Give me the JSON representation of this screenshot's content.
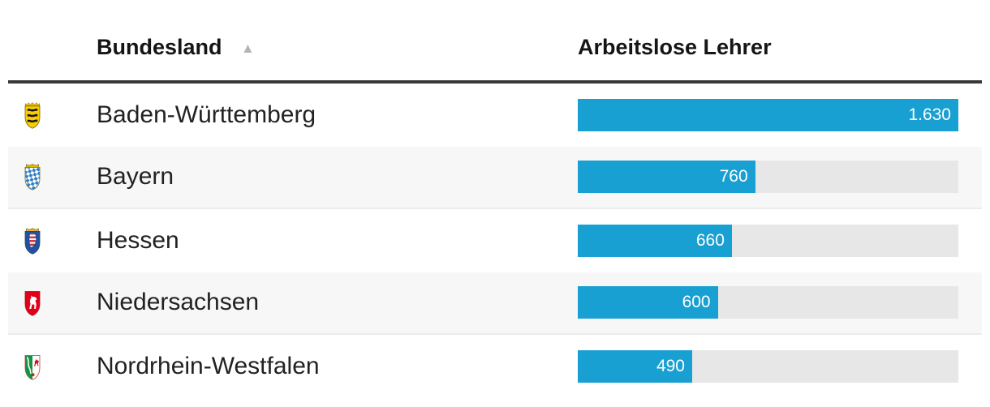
{
  "header": {
    "bundesland_label": "Bundesland",
    "sort_icon": "▲",
    "value_column_label": "Arbeitslose Lehrer"
  },
  "chart_data": {
    "type": "bar",
    "orientation": "horizontal",
    "title": "Arbeitslose Lehrer",
    "categories": [
      "Baden-Württemberg",
      "Bayern",
      "Hessen",
      "Niedersachsen",
      "Nordrhein-Westfalen"
    ],
    "values": [
      1630,
      760,
      660,
      600,
      490
    ],
    "value_labels": [
      "1.630",
      "760",
      "660",
      "600",
      "490"
    ],
    "xlim": [
      0,
      1630
    ],
    "max": 1630,
    "legend": "none",
    "grid": "off"
  },
  "rows": [
    {
      "label": "Baden-Württemberg",
      "value": 1630,
      "value_label": "1.630",
      "crest": "baden-wuerttemberg-coat-of-arms"
    },
    {
      "label": "Bayern",
      "value": 760,
      "value_label": "760",
      "crest": "bayern-coat-of-arms"
    },
    {
      "label": "Hessen",
      "value": 660,
      "value_label": "660",
      "crest": "hessen-coat-of-arms"
    },
    {
      "label": "Niedersachsen",
      "value": 600,
      "value_label": "600",
      "crest": "niedersachsen-coat-of-arms"
    },
    {
      "label": "Nordrhein-Westfalen",
      "value": 490,
      "value_label": "490",
      "crest": "nordrhein-westfalen-coat-of-arms"
    }
  ],
  "colors": {
    "bar": "#19A0D2",
    "track": "#E7E7E7",
    "alt_row": "#F7F7F7",
    "row_border": "#ECECEC",
    "divider": "#383838",
    "header_text": "#151515",
    "label_text": "#222222",
    "bar_value_text": "#FFFFFF",
    "sort_icon": "#B5B5B5"
  }
}
